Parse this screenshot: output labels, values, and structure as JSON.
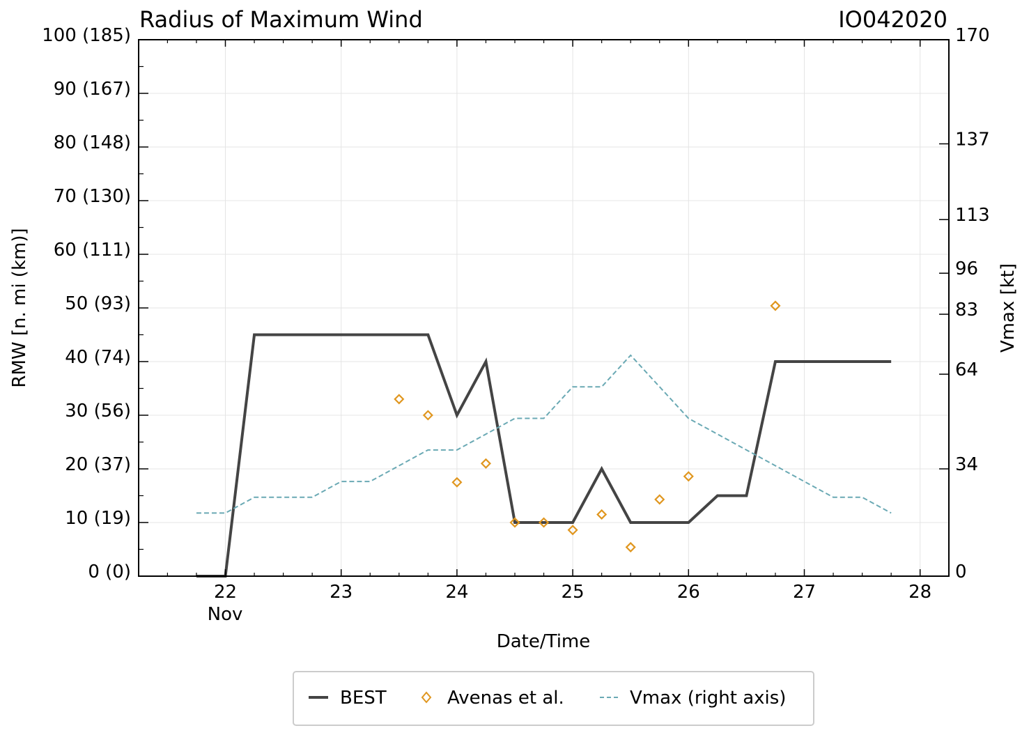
{
  "chart_data": {
    "type": "line",
    "title": "Radius of Maximum Wind",
    "storm_id": "IO042020",
    "xlabel": "Date/Time",
    "ylabel_left": "RMW [n. mi (km)]",
    "ylabel_right": "Vmax [kt]",
    "x_ticks": [
      "22",
      "23",
      "24",
      "25",
      "26",
      "27",
      "28"
    ],
    "x_month_label": "Nov",
    "xlim": [
      "2020-11-21 06:00",
      "2020-11-28 06:00"
    ],
    "ylim_left": [
      0,
      100
    ],
    "ylim_right": [
      0,
      170
    ],
    "left_ticks": [
      {
        "value": 0,
        "label": "0 (0)"
      },
      {
        "value": 10,
        "label": "10 (19)"
      },
      {
        "value": 20,
        "label": "20 (37)"
      },
      {
        "value": 30,
        "label": "30 (56)"
      },
      {
        "value": 40,
        "label": "40 (74)"
      },
      {
        "value": 50,
        "label": "50 (93)"
      },
      {
        "value": 60,
        "label": "60 (111)"
      },
      {
        "value": 70,
        "label": "70 (130)"
      },
      {
        "value": 80,
        "label": "80 (148)"
      },
      {
        "value": 90,
        "label": "90 (167)"
      },
      {
        "value": 100,
        "label": "100 (185)"
      }
    ],
    "right_ticks": [
      {
        "value": 0,
        "label": "0"
      },
      {
        "value": 34,
        "label": "34"
      },
      {
        "value": 64,
        "label": "64"
      },
      {
        "value": 83,
        "label": "83"
      },
      {
        "value": 96,
        "label": "96"
      },
      {
        "value": 113,
        "label": "113"
      },
      {
        "value": 137,
        "label": "137"
      },
      {
        "value": 170,
        "label": "170"
      }
    ],
    "grid": true,
    "legend_position": "bottom-center",
    "series": [
      {
        "name": "BEST",
        "axis": "left",
        "style": "solid",
        "color": "#444444",
        "points": [
          {
            "x": "2020-11-21 18:00",
            "y": 0
          },
          {
            "x": "2020-11-22 00:00",
            "y": 0
          },
          {
            "x": "2020-11-22 06:00",
            "y": 45
          },
          {
            "x": "2020-11-23 18:00",
            "y": 45
          },
          {
            "x": "2020-11-24 00:00",
            "y": 30
          },
          {
            "x": "2020-11-24 06:00",
            "y": 40
          },
          {
            "x": "2020-11-24 12:00",
            "y": 10
          },
          {
            "x": "2020-11-25 00:00",
            "y": 10
          },
          {
            "x": "2020-11-25 06:00",
            "y": 20
          },
          {
            "x": "2020-11-25 12:00",
            "y": 10
          },
          {
            "x": "2020-11-26 00:00",
            "y": 10
          },
          {
            "x": "2020-11-26 06:00",
            "y": 15
          },
          {
            "x": "2020-11-26 12:00",
            "y": 15
          },
          {
            "x": "2020-11-26 18:00",
            "y": 40
          },
          {
            "x": "2020-11-27 18:00",
            "y": 40
          }
        ]
      },
      {
        "name": "Avenas et al.",
        "axis": "left",
        "style": "markers",
        "color": "#e0961e",
        "points": [
          {
            "x": "2020-11-23 12:00",
            "y": 33
          },
          {
            "x": "2020-11-23 18:00",
            "y": 30
          },
          {
            "x": "2020-11-24 00:00",
            "y": 17.5
          },
          {
            "x": "2020-11-24 06:00",
            "y": 21
          },
          {
            "x": "2020-11-24 12:00",
            "y": 10
          },
          {
            "x": "2020-11-24 18:00",
            "y": 10
          },
          {
            "x": "2020-11-25 00:00",
            "y": 8.6
          },
          {
            "x": "2020-11-25 06:00",
            "y": 11.5
          },
          {
            "x": "2020-11-25 12:00",
            "y": 5.4
          },
          {
            "x": "2020-11-25 18:00",
            "y": 14.3
          },
          {
            "x": "2020-11-26 00:00",
            "y": 18.6
          },
          {
            "x": "2020-11-26 18:00",
            "y": 50.4
          }
        ]
      },
      {
        "name": "Vmax (right axis)",
        "axis": "right",
        "style": "dashed",
        "color": "#6aa9b4",
        "points": [
          {
            "x": "2020-11-21 18:00",
            "y": 20
          },
          {
            "x": "2020-11-22 00:00",
            "y": 20
          },
          {
            "x": "2020-11-22 06:00",
            "y": 25
          },
          {
            "x": "2020-11-22 18:00",
            "y": 25
          },
          {
            "x": "2020-11-23 00:00",
            "y": 30
          },
          {
            "x": "2020-11-23 06:00",
            "y": 30
          },
          {
            "x": "2020-11-23 18:00",
            "y": 40
          },
          {
            "x": "2020-11-24 00:00",
            "y": 40
          },
          {
            "x": "2020-11-24 12:00",
            "y": 50
          },
          {
            "x": "2020-11-24 18:00",
            "y": 50
          },
          {
            "x": "2020-11-25 00:00",
            "y": 60
          },
          {
            "x": "2020-11-25 06:00",
            "y": 60
          },
          {
            "x": "2020-11-25 12:00",
            "y": 70
          },
          {
            "x": "2020-11-26 00:00",
            "y": 50
          },
          {
            "x": "2020-11-26 12:00",
            "y": 40
          },
          {
            "x": "2020-11-26 18:00",
            "y": 35
          },
          {
            "x": "2020-11-27 06:00",
            "y": 25
          },
          {
            "x": "2020-11-27 12:00",
            "y": 25
          },
          {
            "x": "2020-11-27 18:00",
            "y": 20
          }
        ]
      }
    ]
  }
}
